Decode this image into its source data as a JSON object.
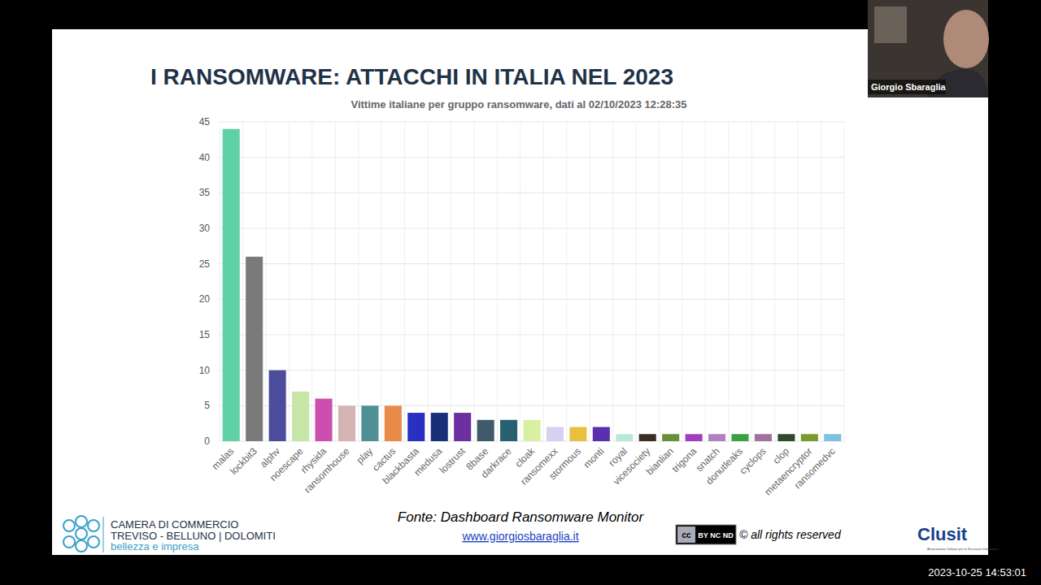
{
  "chart_data": {
    "type": "bar",
    "title": "I RANSOMWARE: ATTACCHI IN ITALIA NEL 2023",
    "subtitle": "Vittime italiane per gruppo ransomware, dati al 02/10/2023 12:28:35",
    "categories": [
      "malas",
      "lockbit3",
      "alphv",
      "noescape",
      "rhysida",
      "ransomhouse",
      "play",
      "cactus",
      "blackbasta",
      "medusa",
      "lostrust",
      "8base",
      "darkrace",
      "cloak",
      "ransomexx",
      "stormous",
      "monti",
      "royal",
      "vicesociety",
      "bianlian",
      "trigona",
      "snatch",
      "donutleaks",
      "cyclops",
      "clop",
      "metaencryptor",
      "ransomedvc"
    ],
    "values": [
      44,
      26,
      10,
      7,
      6,
      5,
      5,
      5,
      4,
      4,
      4,
      3,
      3,
      3,
      2,
      2,
      2,
      1,
      1,
      1,
      1,
      1,
      1,
      1,
      1,
      1,
      1
    ],
    "colors": [
      "#5ed1a6",
      "#7a7a7a",
      "#4c4c9c",
      "#c8e6a8",
      "#cc4fb0",
      "#d4b3b3",
      "#4f8f96",
      "#e88b48",
      "#2a2fc4",
      "#1a2f7a",
      "#6b2fa0",
      "#3f5a6b",
      "#276070",
      "#d8f0a0",
      "#d8d0f0",
      "#e8c040",
      "#5a30b0",
      "#b8e8d8",
      "#3a2f20",
      "#6a8f3a",
      "#a040c0",
      "#b080c0",
      "#3aa040",
      "#a070a0",
      "#2f4a2a",
      "#7a9a2a",
      "#80c0e0"
    ],
    "ylim": [
      0,
      45
    ],
    "yticks": [
      0,
      5,
      10,
      15,
      20,
      25,
      30,
      35,
      40,
      45
    ],
    "grid": true
  },
  "page": {
    "source": "Fonte: Dashboard Ransomware Monitor",
    "url": "www.giorgiosbaraglia.it",
    "license": "BY NC ND",
    "rights": "© all rights reserved",
    "logo_left": [
      "CAMERA DI COMMERCIO",
      "TREVISO - BELLUNO | DOLOMITI",
      "bellezza e impresa"
    ],
    "logo_right": "Clusit",
    "logo_right_sub": "Associazione Italiana per la Sicurezza Informatica",
    "speaker": "Giorgio Sbaraglia",
    "timestamp": "2023-10-25 14:53:01"
  }
}
